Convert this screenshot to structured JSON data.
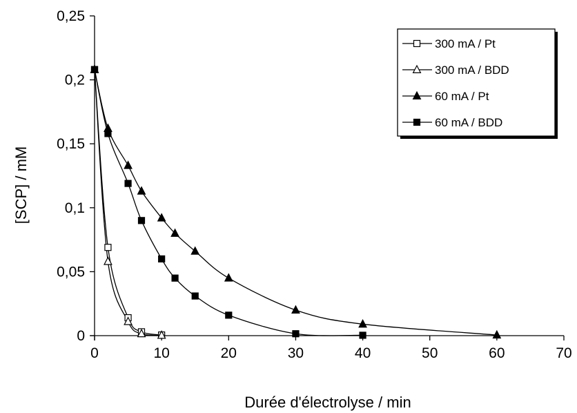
{
  "chart_data": {
    "type": "scatter",
    "title": "",
    "xlabel": "Durée d'électrolyse / min",
    "ylabel": "[SCP] / mM",
    "xlim": [
      0,
      70
    ],
    "ylim": [
      0,
      0.25
    ],
    "x_ticks": [
      "0",
      "10",
      "20",
      "30",
      "40",
      "50",
      "60",
      "70"
    ],
    "y_ticks": [
      "0",
      "0,05",
      "0,1",
      "0,15",
      "0,2",
      "0,25"
    ],
    "grid": false,
    "legend_position": "top-right",
    "series": [
      {
        "name": "300 mA / Pt",
        "marker": "square-open",
        "x": [
          0,
          2,
          5,
          7,
          10
        ],
        "y": [
          0.208,
          0.069,
          0.014,
          0.003,
          0.0005
        ]
      },
      {
        "name": "300 mA / BDD",
        "marker": "triangle-open",
        "x": [
          0,
          2,
          5,
          7,
          10
        ],
        "y": [
          0.208,
          0.058,
          0.011,
          0.0015,
          0.0003
        ]
      },
      {
        "name": "60 mA / Pt",
        "marker": "triangle-filled",
        "x": [
          0,
          2,
          5,
          7,
          10,
          12,
          15,
          20,
          30,
          40,
          60
        ],
        "y": [
          0.208,
          0.162,
          0.133,
          0.113,
          0.092,
          0.08,
          0.066,
          0.045,
          0.02,
          0.009,
          0.0005
        ]
      },
      {
        "name": "60 mA / BDD",
        "marker": "square-filled",
        "x": [
          0,
          2,
          5,
          7,
          10,
          12,
          15,
          20,
          30,
          40
        ],
        "y": [
          0.208,
          0.158,
          0.119,
          0.09,
          0.06,
          0.045,
          0.031,
          0.016,
          0.0015,
          0.0003
        ]
      }
    ]
  }
}
